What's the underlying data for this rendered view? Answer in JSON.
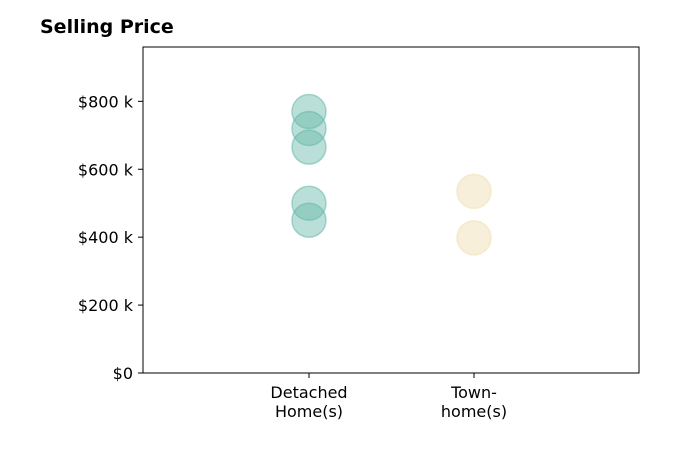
{
  "chart_data": {
    "type": "scatter",
    "title": "Selling Price",
    "categories": [
      "Detached\nHome(s)",
      "Town-\nhome(s)"
    ],
    "ylim": [
      0,
      960000
    ],
    "y_ticks": [
      0,
      200000,
      400000,
      600000,
      800000
    ],
    "y_tick_labels": [
      "$0",
      "$200 k",
      "$400 k",
      "$600 k",
      "$800 k"
    ],
    "series": [
      {
        "category": "Detached\nHome(s)",
        "color": "#67b7a9",
        "values": [
          770000,
          720000,
          665000,
          500000,
          450000
        ]
      },
      {
        "category": "Town-\nhome(s)",
        "color": "#f0dcb0",
        "values": [
          535000,
          398000
        ]
      }
    ],
    "grid": false,
    "legend": "none"
  }
}
